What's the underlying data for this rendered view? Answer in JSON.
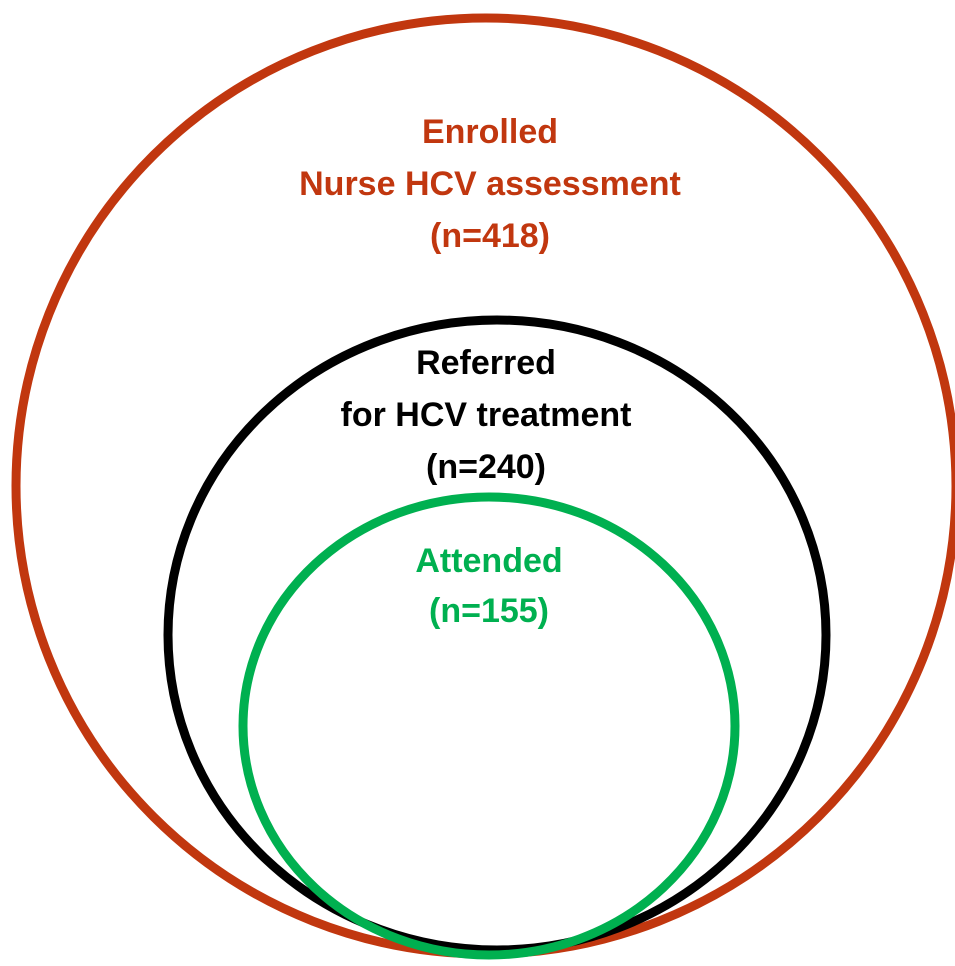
{
  "nodes": [
    {
      "lines": [
        "Enrolled",
        "Nurse HCV assessment",
        "(n=418)"
      ]
    },
    {
      "lines": [
        "Referred",
        "for HCV treatment",
        "(n=240)"
      ]
    },
    {
      "lines": [
        "Attended",
        "(n=155)"
      ]
    }
  ]
}
